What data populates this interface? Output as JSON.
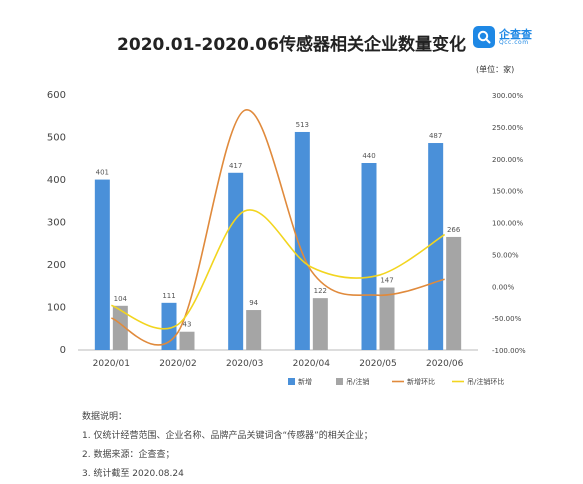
{
  "title": "2020.01-2020.06传感器相关企业数量变化",
  "logo": {
    "name": "企查查",
    "sub": "Qcc.com"
  },
  "unit": "(单位：家)",
  "chart_data": {
    "type": "bar",
    "categories": [
      "2020/01",
      "2020/02",
      "2020/03",
      "2020/04",
      "2020/05",
      "2020/06"
    ],
    "series": [
      {
        "name": "新增",
        "kind": "bar",
        "axis": "left",
        "color": "#4a90d9",
        "values": [
          401,
          111,
          417,
          513,
          440,
          487
        ]
      },
      {
        "name": "吊/注销",
        "kind": "bar",
        "axis": "left",
        "color": "#a5a5a5",
        "values": [
          104,
          43,
          94,
          122,
          147,
          266
        ]
      },
      {
        "name": "新增环比",
        "kind": "line",
        "axis": "right",
        "color": "#e08a3c",
        "values": [
          -50,
          -72,
          276,
          24,
          -14,
          11
        ]
      },
      {
        "name": "吊/注销环比",
        "kind": "line",
        "axis": "right",
        "color": "#f2d51f",
        "values": [
          -30,
          -60,
          118,
          30,
          17,
          81
        ]
      }
    ],
    "left_axis": {
      "min": 0,
      "max": 600,
      "ticks": [
        "0",
        "100",
        "200",
        "300",
        "400",
        "500",
        "600"
      ]
    },
    "right_axis": {
      "min": -100,
      "max": 300,
      "ticks": [
        "-100.00%",
        "-50.00%",
        "0.00%",
        "50.00%",
        "100.00%",
        "150.00%",
        "200.00%",
        "250.00%",
        "300.00%"
      ]
    },
    "legend_position": "bottom-right",
    "grid": false
  },
  "notes": {
    "heading": "数据说明：",
    "items": [
      "1. 仅统计经营范围、企业名称、品牌产品关键词含“传感器”的相关企业；",
      "2. 数据来源：企查查；",
      "3. 统计截至 2020.08.24"
    ]
  }
}
